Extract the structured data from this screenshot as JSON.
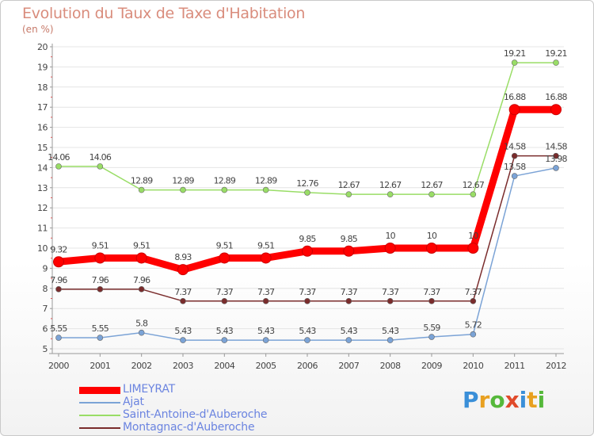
{
  "chart_data": {
    "type": "line",
    "title": "Evolution du Taux de Taxe d'Habitation",
    "subtitle": "(en %)",
    "x": [
      "2000",
      "2001",
      "2002",
      "2003",
      "2004",
      "2005",
      "2006",
      "2007",
      "2008",
      "2009",
      "2010",
      "2011",
      "2012"
    ],
    "ylim": [
      5,
      20
    ],
    "yticks": [
      5,
      6,
      7,
      8,
      9,
      10,
      11,
      12,
      13,
      14,
      15,
      16,
      17,
      18,
      19,
      20
    ],
    "grid": true,
    "legend_position": "bottom-left",
    "series": [
      {
        "name": "LIMEYRAT",
        "color": "#ff0000",
        "values": [
          9.32,
          9.51,
          9.51,
          8.93,
          9.51,
          9.51,
          9.85,
          9.85,
          10,
          10,
          10,
          16.88,
          16.88
        ],
        "labels": [
          "9.32",
          "9.51",
          "9.51",
          "8.93",
          "9.51",
          "9.51",
          "9.85",
          "9.85",
          "10",
          "10",
          "10",
          "16.88",
          "16.88"
        ]
      },
      {
        "name": "Ajat",
        "color": "#7ba3d6",
        "values": [
          5.55,
          5.55,
          5.8,
          5.43,
          5.43,
          5.43,
          5.43,
          5.43,
          5.43,
          5.59,
          5.72,
          13.58,
          13.98
        ],
        "labels": [
          "5.55",
          "5.55",
          "5.8",
          "5.43",
          "5.43",
          "5.43",
          "5.43",
          "5.43",
          "5.43",
          "5.59",
          "5.72",
          "13.58",
          "13.98"
        ]
      },
      {
        "name": "Saint-Antoine-d'Auberoche",
        "color": "#99dd66",
        "values": [
          14.06,
          14.06,
          12.89,
          12.89,
          12.89,
          12.89,
          12.76,
          12.67,
          12.67,
          12.67,
          12.67,
          19.21,
          19.21
        ],
        "labels": [
          "14.06",
          "14.06",
          "12.89",
          "12.89",
          "12.89",
          "12.89",
          "12.76",
          "12.67",
          "12.67",
          "12.67",
          "12.67",
          "19.21",
          "19.21"
        ]
      },
      {
        "name": "Montagnac-d'Auberoche",
        "color": "#7a2c2c",
        "values": [
          7.96,
          7.96,
          7.96,
          7.37,
          7.37,
          7.37,
          7.37,
          7.37,
          7.37,
          7.37,
          7.37,
          14.58,
          14.58
        ],
        "labels": [
          "7.96",
          "7.96",
          "7.96",
          "7.37",
          "7.37",
          "7.37",
          "7.37",
          "7.37",
          "7.37",
          "7.37",
          "7.37",
          "14.58",
          "14.58"
        ]
      }
    ]
  },
  "brand": {
    "letters": [
      "P",
      "r",
      "o",
      "x",
      "i",
      "t",
      "i"
    ],
    "colors": [
      "#3a8fd8",
      "#e8a020",
      "#55b83a",
      "#e04a2a",
      "#3a8fd8",
      "#e8a020",
      "#55b83a"
    ]
  }
}
